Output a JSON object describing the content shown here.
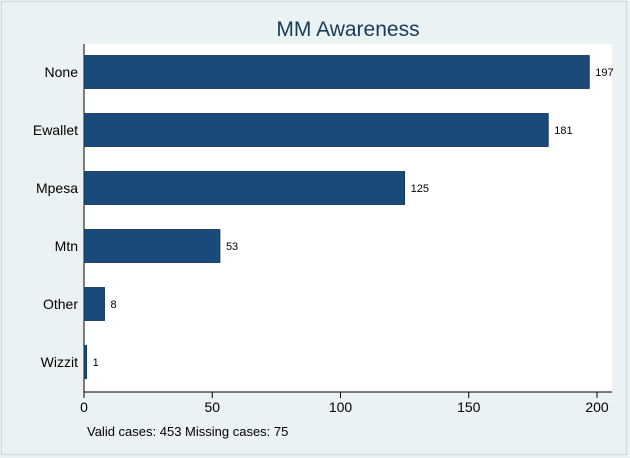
{
  "chart_data": {
    "type": "bar",
    "orientation": "horizontal",
    "title": "MM Awareness",
    "categories": [
      "None",
      "Ewallet",
      "Mpesa",
      "Mtn",
      "Other",
      "Wizzit"
    ],
    "values": [
      197,
      181,
      125,
      53,
      8,
      1
    ],
    "value_labels": [
      "197",
      "181",
      "125",
      "53",
      "8",
      "1"
    ],
    "xlim": [
      0,
      200
    ],
    "xticks": [
      0,
      50,
      100,
      150,
      200
    ],
    "xtick_labels": [
      "0",
      "50",
      "100",
      "150",
      "200"
    ],
    "xlabel": "",
    "ylabel": "",
    "grid": false,
    "bar_color": "#1a4a7a",
    "note": "Valid cases: 453 Missing cases: 75"
  }
}
